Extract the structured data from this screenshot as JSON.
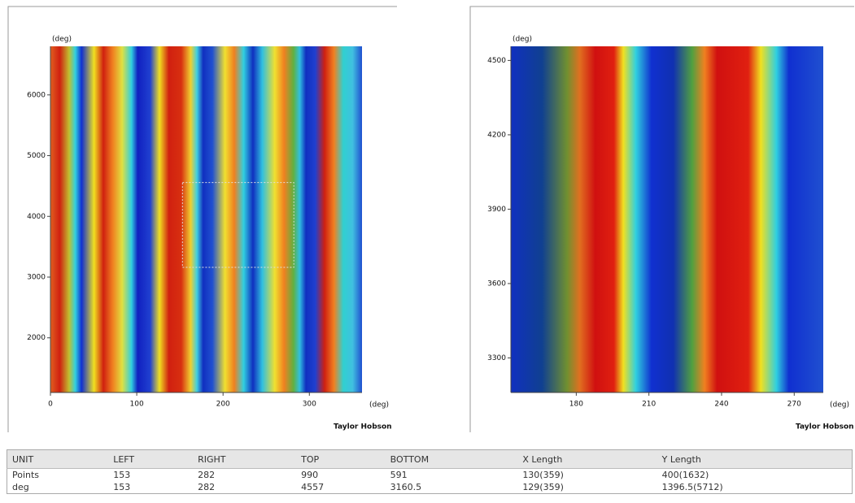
{
  "left_map": {
    "y_unit": "(deg)",
    "x_unit": "(deg)",
    "brand": "Taylor Hobson",
    "xlim": [
      0,
      361
    ],
    "ylim": [
      1100,
      6800
    ],
    "xticks": [
      0,
      100,
      200,
      300
    ],
    "yticks": [
      2000,
      3000,
      4000,
      5000,
      6000
    ]
  },
  "right_map": {
    "y_unit": "(deg)",
    "x_unit": "(deg)",
    "brand": "Taylor Hobson",
    "xlim": [
      153,
      282
    ],
    "ylim": [
      3160.5,
      4557
    ],
    "xticks": [
      180,
      210,
      240,
      270
    ],
    "yticks": [
      3300,
      3600,
      3900,
      4200,
      4500
    ]
  },
  "table": {
    "header": [
      "UNIT",
      "LEFT",
      "RIGHT",
      "TOP",
      "BOTTOM",
      "X Length",
      "Y Length"
    ],
    "rows": [
      [
        "Points",
        153,
        282,
        990,
        591,
        "130(359)",
        "400(1632)"
      ],
      [
        "deg",
        153,
        282,
        4557,
        3160.5,
        "129(359)",
        "1396.5(5712)"
      ]
    ]
  }
}
